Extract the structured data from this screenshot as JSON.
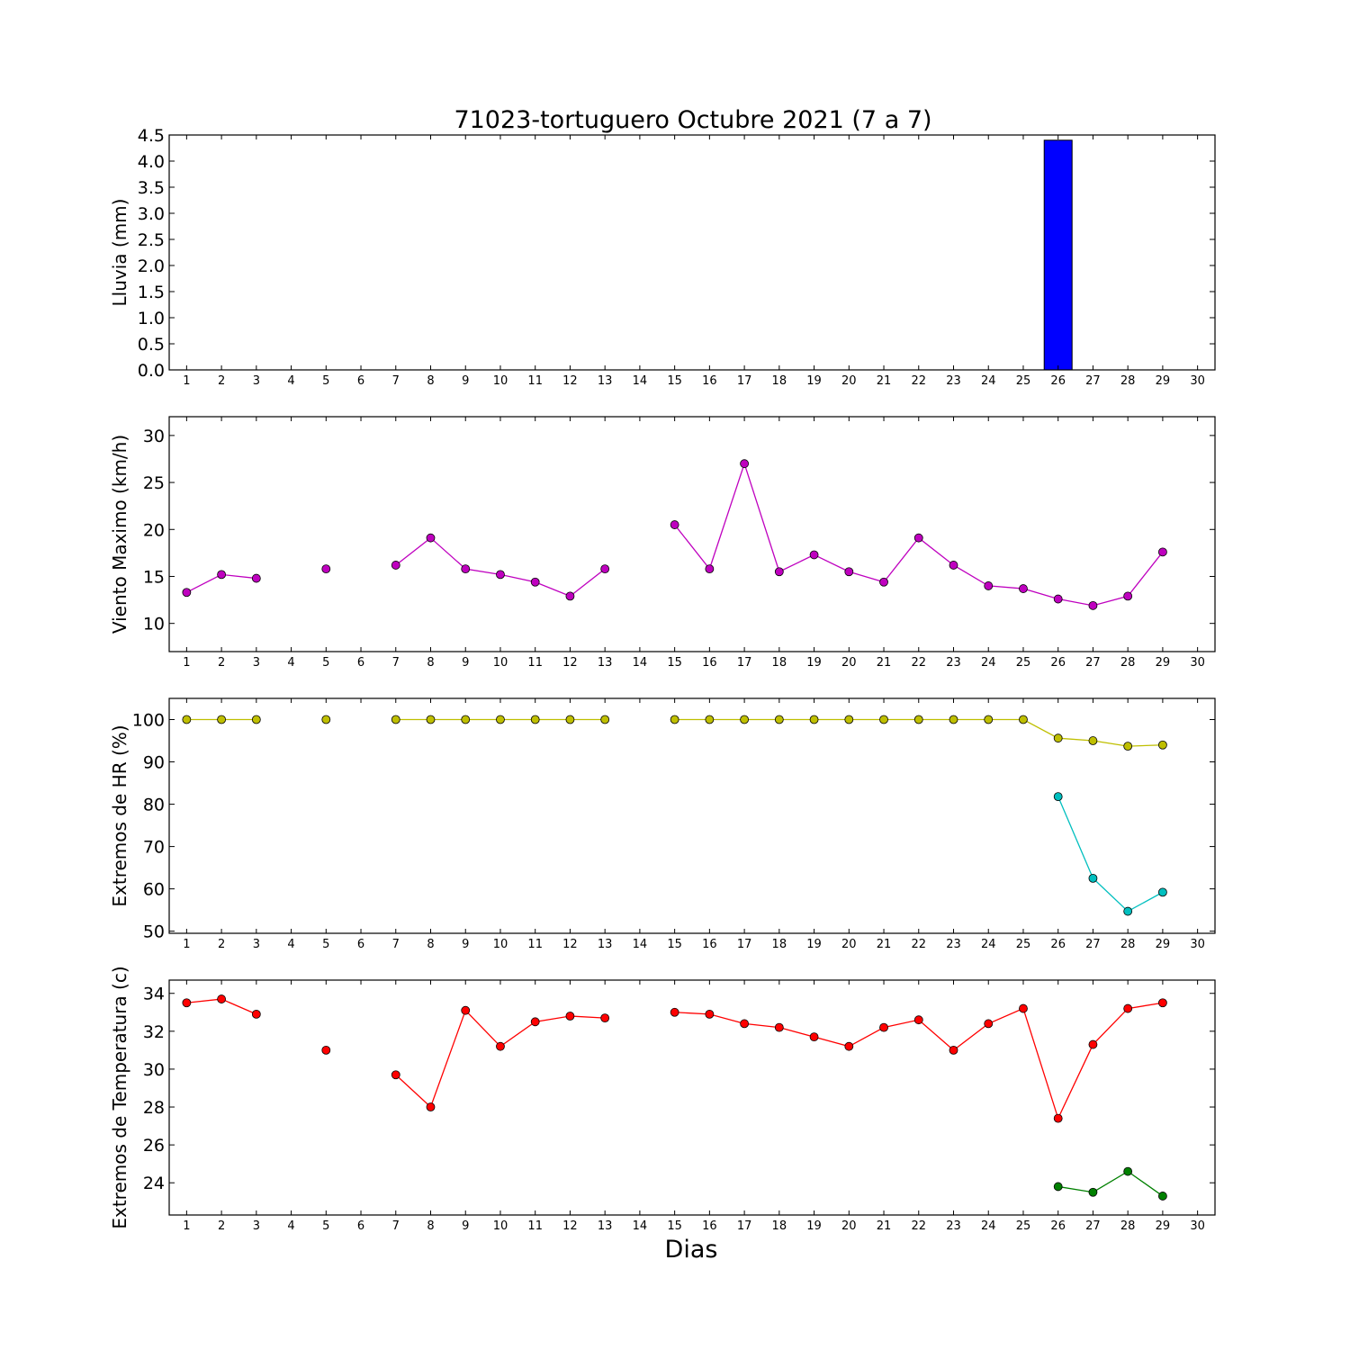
{
  "chart_data": [
    {
      "type": "bar",
      "title": "71023-tortuguero Octubre 2021  (7 a 7)",
      "ylabel": "Lluvia (mm)",
      "xlabel": "",
      "ylim": [
        0,
        4.5
      ],
      "yticks": [
        0.0,
        0.5,
        1.0,
        1.5,
        2.0,
        2.5,
        3.0,
        3.5,
        4.0,
        4.5
      ],
      "ytick_decimals": 1,
      "xlim": [
        0.5,
        30.5
      ],
      "xticks": [
        1,
        2,
        3,
        4,
        5,
        6,
        7,
        8,
        9,
        10,
        11,
        12,
        13,
        14,
        15,
        16,
        17,
        18,
        19,
        20,
        21,
        22,
        23,
        24,
        25,
        26,
        27,
        28,
        29,
        30
      ],
      "x": [
        1,
        2,
        3,
        4,
        5,
        6,
        7,
        8,
        9,
        10,
        11,
        12,
        13,
        14,
        15,
        16,
        17,
        18,
        19,
        20,
        21,
        22,
        23,
        24,
        25,
        26,
        27,
        28,
        29,
        30
      ],
      "series": [
        {
          "color": "#0000ff",
          "values": [
            0,
            0,
            0,
            null,
            0,
            null,
            0,
            0,
            0,
            0,
            0,
            0,
            0,
            null,
            0,
            0,
            0,
            0,
            0,
            0,
            0,
            0,
            0,
            0,
            0,
            4.4,
            0,
            0,
            0,
            null
          ]
        }
      ]
    },
    {
      "type": "line",
      "title": "",
      "ylabel": "Viento Maximo (km/h)",
      "xlabel": "",
      "ylim": [
        7,
        32
      ],
      "yticks": [
        10,
        15,
        20,
        25,
        30
      ],
      "ytick_decimals": 0,
      "xlim": [
        0.5,
        30.5
      ],
      "xticks": [
        1,
        2,
        3,
        4,
        5,
        6,
        7,
        8,
        9,
        10,
        11,
        12,
        13,
        14,
        15,
        16,
        17,
        18,
        19,
        20,
        21,
        22,
        23,
        24,
        25,
        26,
        27,
        28,
        29,
        30
      ],
      "x": [
        1,
        2,
        3,
        4,
        5,
        6,
        7,
        8,
        9,
        10,
        11,
        12,
        13,
        14,
        15,
        16,
        17,
        18,
        19,
        20,
        21,
        22,
        23,
        24,
        25,
        26,
        27,
        28,
        29,
        30
      ],
      "series": [
        {
          "color": "#bf00bf",
          "values": [
            13.3,
            15.2,
            14.8,
            null,
            15.8,
            null,
            16.2,
            19.1,
            15.8,
            15.2,
            14.4,
            12.9,
            15.8,
            null,
            20.5,
            15.8,
            27.0,
            15.5,
            17.3,
            15.5,
            14.4,
            19.1,
            16.2,
            14.0,
            13.7,
            12.6,
            11.9,
            12.9,
            17.6,
            null
          ]
        }
      ]
    },
    {
      "type": "line",
      "title": "",
      "ylabel": "Extremos de HR (%)",
      "xlabel": "",
      "ylim": [
        49.5,
        105
      ],
      "yticks": [
        50,
        60,
        70,
        80,
        90,
        100
      ],
      "ytick_decimals": 0,
      "xlim": [
        0.5,
        30.5
      ],
      "xticks": [
        1,
        2,
        3,
        4,
        5,
        6,
        7,
        8,
        9,
        10,
        11,
        12,
        13,
        14,
        15,
        16,
        17,
        18,
        19,
        20,
        21,
        22,
        23,
        24,
        25,
        26,
        27,
        28,
        29,
        30
      ],
      "x": [
        1,
        2,
        3,
        4,
        5,
        6,
        7,
        8,
        9,
        10,
        11,
        12,
        13,
        14,
        15,
        16,
        17,
        18,
        19,
        20,
        21,
        22,
        23,
        24,
        25,
        26,
        27,
        28,
        29,
        30
      ],
      "series": [
        {
          "color": "#bfbf00",
          "values": [
            100,
            100,
            100,
            null,
            100,
            null,
            100,
            100,
            100,
            100,
            100,
            100,
            100,
            null,
            100,
            100,
            100,
            100,
            100,
            100,
            100,
            100,
            100,
            100,
            100,
            95.6,
            95.0,
            93.7,
            94.0,
            null
          ]
        },
        {
          "color": "#00bfbf",
          "values": [
            null,
            null,
            null,
            null,
            null,
            null,
            null,
            null,
            null,
            null,
            null,
            null,
            null,
            null,
            null,
            null,
            null,
            null,
            null,
            null,
            null,
            null,
            null,
            null,
            null,
            81.8,
            62.5,
            54.7,
            59.2,
            null
          ]
        }
      ]
    },
    {
      "type": "line",
      "title": "",
      "ylabel": "Extremos de Temperatura (c)",
      "xlabel": "Dias",
      "ylim": [
        22.3,
        34.7
      ],
      "yticks": [
        24,
        26,
        28,
        30,
        32,
        34
      ],
      "ytick_decimals": 0,
      "xlim": [
        0.5,
        30.5
      ],
      "xticks": [
        1,
        2,
        3,
        4,
        5,
        6,
        7,
        8,
        9,
        10,
        11,
        12,
        13,
        14,
        15,
        16,
        17,
        18,
        19,
        20,
        21,
        22,
        23,
        24,
        25,
        26,
        27,
        28,
        29,
        30
      ],
      "x": [
        1,
        2,
        3,
        4,
        5,
        6,
        7,
        8,
        9,
        10,
        11,
        12,
        13,
        14,
        15,
        16,
        17,
        18,
        19,
        20,
        21,
        22,
        23,
        24,
        25,
        26,
        27,
        28,
        29,
        30
      ],
      "series": [
        {
          "color": "#ff0000",
          "values": [
            33.5,
            33.7,
            32.9,
            null,
            31.0,
            null,
            29.7,
            28.0,
            33.1,
            31.2,
            32.5,
            32.8,
            32.7,
            null,
            33.0,
            32.9,
            32.4,
            32.2,
            31.7,
            31.2,
            32.2,
            32.6,
            31.0,
            32.4,
            33.2,
            27.4,
            31.3,
            33.2,
            33.5,
            null
          ]
        },
        {
          "color": "#008000",
          "values": [
            null,
            null,
            null,
            null,
            null,
            null,
            null,
            null,
            null,
            null,
            null,
            null,
            null,
            null,
            null,
            null,
            null,
            null,
            null,
            null,
            null,
            null,
            null,
            null,
            null,
            23.8,
            23.5,
            24.6,
            23.3,
            null
          ]
        }
      ]
    }
  ]
}
